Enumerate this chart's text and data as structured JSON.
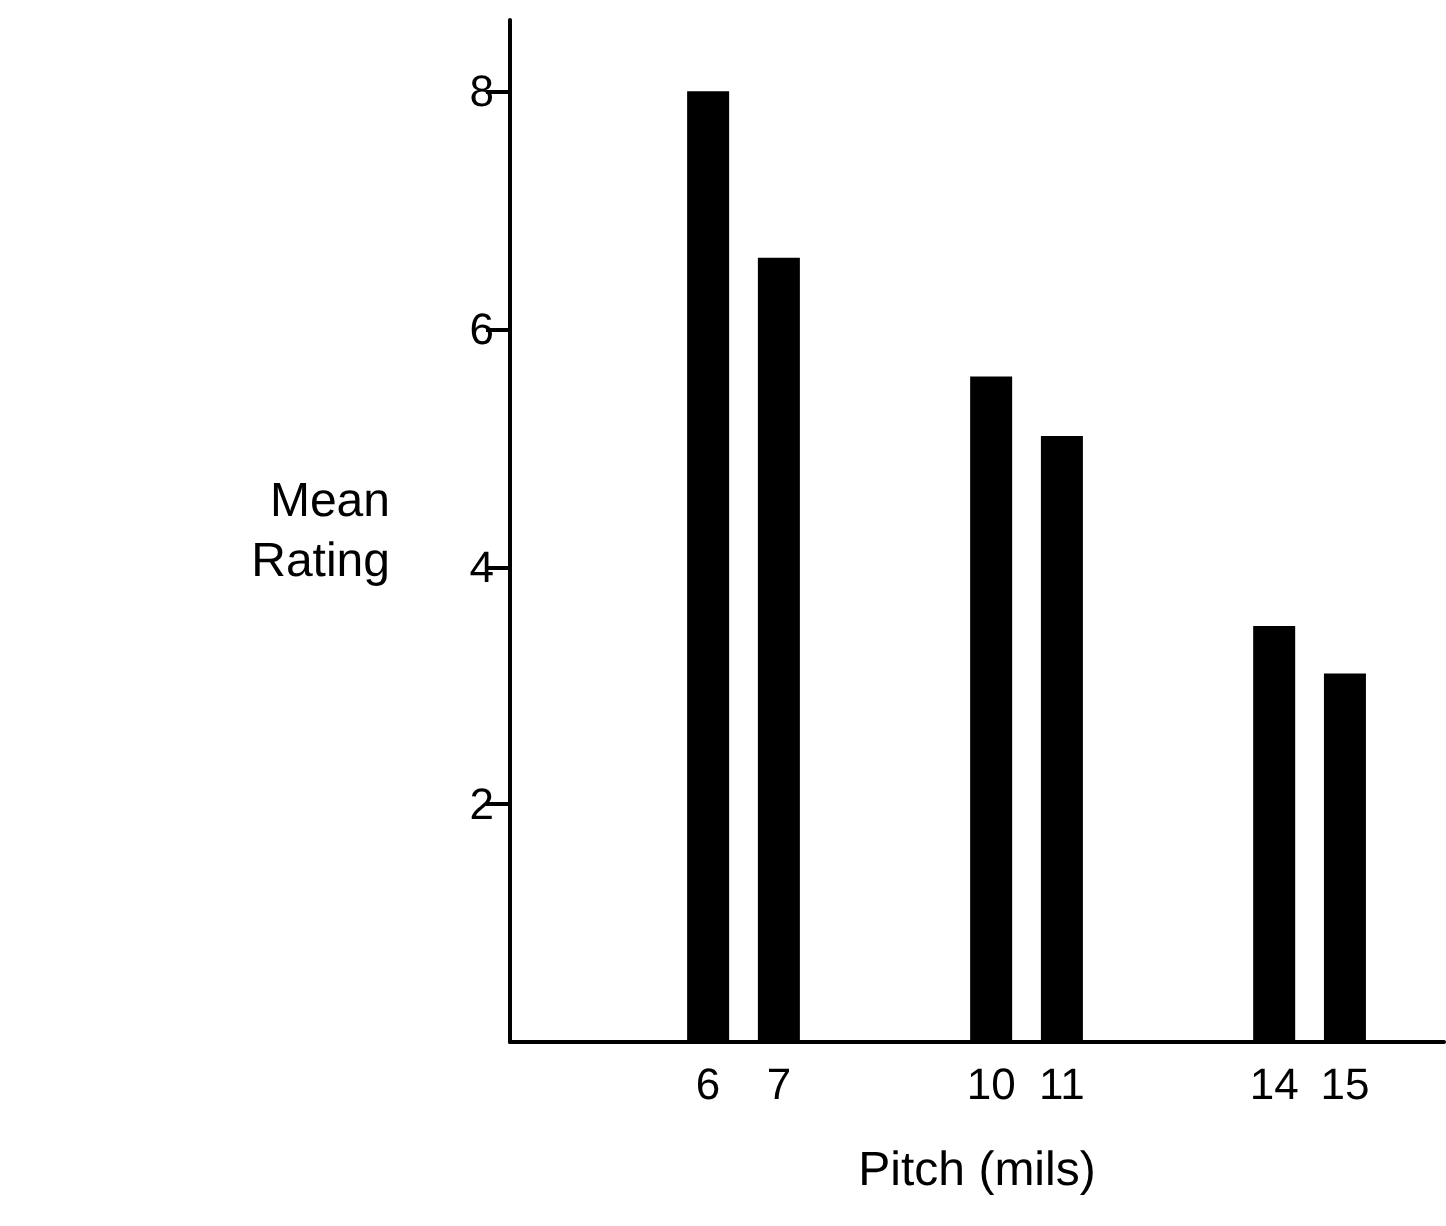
{
  "chart_data": {
    "type": "bar",
    "xlabel": "Pitch (mils)",
    "ylabel": "Mean\nRating",
    "x": [
      6,
      7,
      10,
      11,
      14,
      15
    ],
    "values": [
      8.0,
      6.6,
      5.6,
      5.1,
      3.5,
      3.1
    ],
    "color": "#000000",
    "xlim": [
      3.2,
      16.4
    ],
    "xticks": [
      6,
      7,
      10,
      11,
      14,
      15
    ],
    "ylim": [
      0,
      8.6
    ],
    "yticks": [
      2,
      4,
      6,
      8
    ],
    "grid": false
  }
}
